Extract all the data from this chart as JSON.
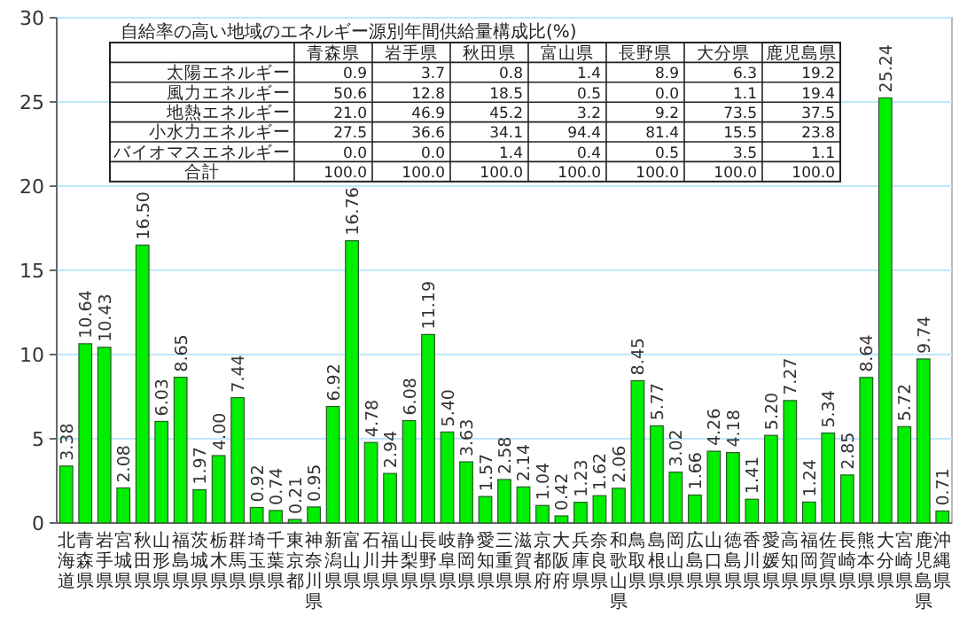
{
  "chart_data": {
    "type": "bar",
    "categories": [
      "北海道",
      "青森県",
      "岩手県",
      "宮城県",
      "秋田県",
      "山形県",
      "福島県",
      "茨城県",
      "栃木県",
      "群馬県",
      "埼玉県",
      "千葉県",
      "東京都",
      "神奈川県",
      "新潟県",
      "富山県",
      "石川県",
      "福井県",
      "山梨県",
      "長野県",
      "岐阜県",
      "静岡県",
      "愛知県",
      "三重県",
      "滋賀県",
      "京都府",
      "大阪府",
      "兵庫県",
      "奈良県",
      "和歌山県",
      "鳥取県",
      "島根県",
      "岡山県",
      "広島県",
      "山口県",
      "徳島県",
      "香川県",
      "愛媛県",
      "高知県",
      "福岡県",
      "佐賀県",
      "長崎県",
      "熊本県",
      "大分県",
      "宮崎県",
      "鹿児島県",
      "沖縄県"
    ],
    "values": [
      3.38,
      10.64,
      10.43,
      2.08,
      16.5,
      6.03,
      8.65,
      1.97,
      4.0,
      7.44,
      0.92,
      0.74,
      0.21,
      0.95,
      6.92,
      16.76,
      4.78,
      2.94,
      6.08,
      11.19,
      5.4,
      3.63,
      1.57,
      2.58,
      2.14,
      1.04,
      0.42,
      1.23,
      1.62,
      2.06,
      8.45,
      5.77,
      3.02,
      1.66,
      4.26,
      4.18,
      1.41,
      5.2,
      7.27,
      1.24,
      5.34,
      2.85,
      8.64,
      25.24,
      5.72,
      9.74,
      0.71
    ],
    "value_labels": [
      "3.38",
      "10.64",
      "10.43",
      "2.08",
      "16.50",
      "6.03",
      "8.65",
      "1.97",
      "4.00",
      "7.44",
      "0.92",
      "0.74",
      "0.21",
      "0.95",
      "6.92",
      "16.76",
      "4.78",
      "2.94",
      "6.08",
      "11.19",
      "5.40",
      "3.63",
      "1.57",
      "2.58",
      "2.14",
      "1.04",
      "0.42",
      "1.23",
      "1.62",
      "2.06",
      "8.45",
      "5.77",
      "3.02",
      "1.66",
      "4.26",
      "4.18",
      "1.41",
      "5.20",
      "7.27",
      "1.24",
      "5.34",
      "2.85",
      "8.64",
      "25.24",
      "5.72",
      "9.74",
      "0.71"
    ],
    "color": "#00ee00",
    "ylim": [
      0,
      30
    ],
    "yticks": [
      0,
      5,
      10,
      15,
      20,
      25,
      30
    ],
    "grid": "y",
    "annotations": [
      "自給率の高い地域のエネルギー源別年間供給量構成比(%)",
      "青森県",
      "岩手県",
      "秋田県",
      "富山県",
      "長野県",
      "大分県",
      "鹿児島県",
      "太陽エネルギー",
      "0.9",
      "3.7",
      "0.8",
      "1.4",
      "8.9",
      "6.3",
      "19.2",
      "風力エネルギー",
      "50.6",
      "12.8",
      "18.5",
      "0.5",
      "0.0",
      "1.1",
      "19.4",
      "地熱エネルギー",
      "21.0",
      "46.9",
      "45.2",
      "3.2",
      "9.2",
      "73.5",
      "37.5",
      "小水力エネルギー",
      "27.5",
      "36.6",
      "34.1",
      "94.4",
      "81.4",
      "15.5",
      "23.8",
      "バイオマスエネルギー",
      "0.0",
      "0.0",
      "1.4",
      "0.4",
      "0.5",
      "3.5",
      "1.1",
      "合計",
      "100.0",
      "100.0",
      "100.0",
      "100.0",
      "100.0",
      "100.0",
      "100.0"
    ]
  }
}
